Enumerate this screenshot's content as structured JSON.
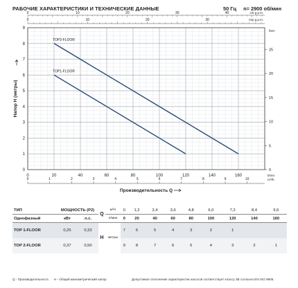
{
  "header": {
    "title": "РАБОЧИЕ ХАРАКТЕРИСТИКИ И ТЕХНИЧЕСКИЕ ДАННЫЕ",
    "frequency": "50 Гц",
    "speed": "n= 2900 об/мин"
  },
  "chart_data": {
    "type": "line",
    "ylabel": "Напор H (метры)",
    "xlabel": "Производительность Q",
    "x_unit": "l/min",
    "y_unit_right": "feet",
    "top_scale_unit": "US g.p.m.",
    "top2_scale_unit": "Imp g.p.m.",
    "bottom2_scale_unit": "m³/h",
    "xlim": [
      0,
      180
    ],
    "ylim": [
      0,
      9
    ],
    "x_ticks": [
      "0",
      "20",
      "40",
      "60",
      "80",
      "100",
      "120",
      "140",
      "160"
    ],
    "y_ticks": [
      "0",
      "1",
      "2",
      "3",
      "4",
      "5",
      "6",
      "7",
      "8",
      "9"
    ],
    "feet_ticks": [
      "0",
      "5",
      "10",
      "15",
      "20",
      "25"
    ],
    "usgpm_ticks": [
      "0",
      "10",
      "20",
      "30",
      "40"
    ],
    "impgpm_ticks": [
      "0",
      "10",
      "20",
      "30"
    ],
    "m3h_ticks": [
      "0",
      "1",
      "2",
      "3",
      "4",
      "5",
      "6",
      "7",
      "8",
      "9",
      "10"
    ],
    "series": [
      {
        "name": "TOP2-FLOOR",
        "x": [
          20,
          160
        ],
        "y": [
          8,
          1
        ]
      },
      {
        "name": "TOP1-FLOOR",
        "x": [
          20,
          120
        ],
        "y": [
          6,
          1
        ]
      }
    ],
    "grid": true,
    "line_color": "#2b4a7a"
  },
  "table": {
    "col_type": "ТИП",
    "col_power": "МОЩНОСТЬ (P2)",
    "col_phase": "Однофазный",
    "unit_kw": "кВт",
    "unit_hp": "л.с.",
    "q_symbol": "Q",
    "unit_m3h": "м³/ч",
    "unit_lmin": "л/мин",
    "h_label": "H",
    "h_unit": "метры",
    "q_m3h": [
      "0",
      "1,2",
      "2,4",
      "3,6",
      "4,8",
      "6,0",
      "7,2",
      "8,4",
      "9,6"
    ],
    "q_lmin": [
      "0",
      "20",
      "40",
      "60",
      "80",
      "100",
      "120",
      "140",
      "160"
    ],
    "pumps": [
      {
        "name": "TOP 1-FLOOR",
        "kw": "0,25",
        "hp": "0,33",
        "h": [
          "7",
          "6",
          "5",
          "4",
          "3",
          "2",
          "1",
          "",
          ""
        ]
      },
      {
        "name": "TOP 2-FLOOR",
        "kw": "0,37",
        "hp": "0,50",
        "h": [
          "9",
          "8",
          "7",
          "6",
          "5",
          "4",
          "3",
          "2",
          "1"
        ]
      }
    ]
  },
  "footer": {
    "left": "Q - Производительность",
    "mid": "H - Общий манометрический напор",
    "right": "Допустимое отклонение характеристик насосов соответствует классу 3B согласно EN ISO 9906."
  }
}
